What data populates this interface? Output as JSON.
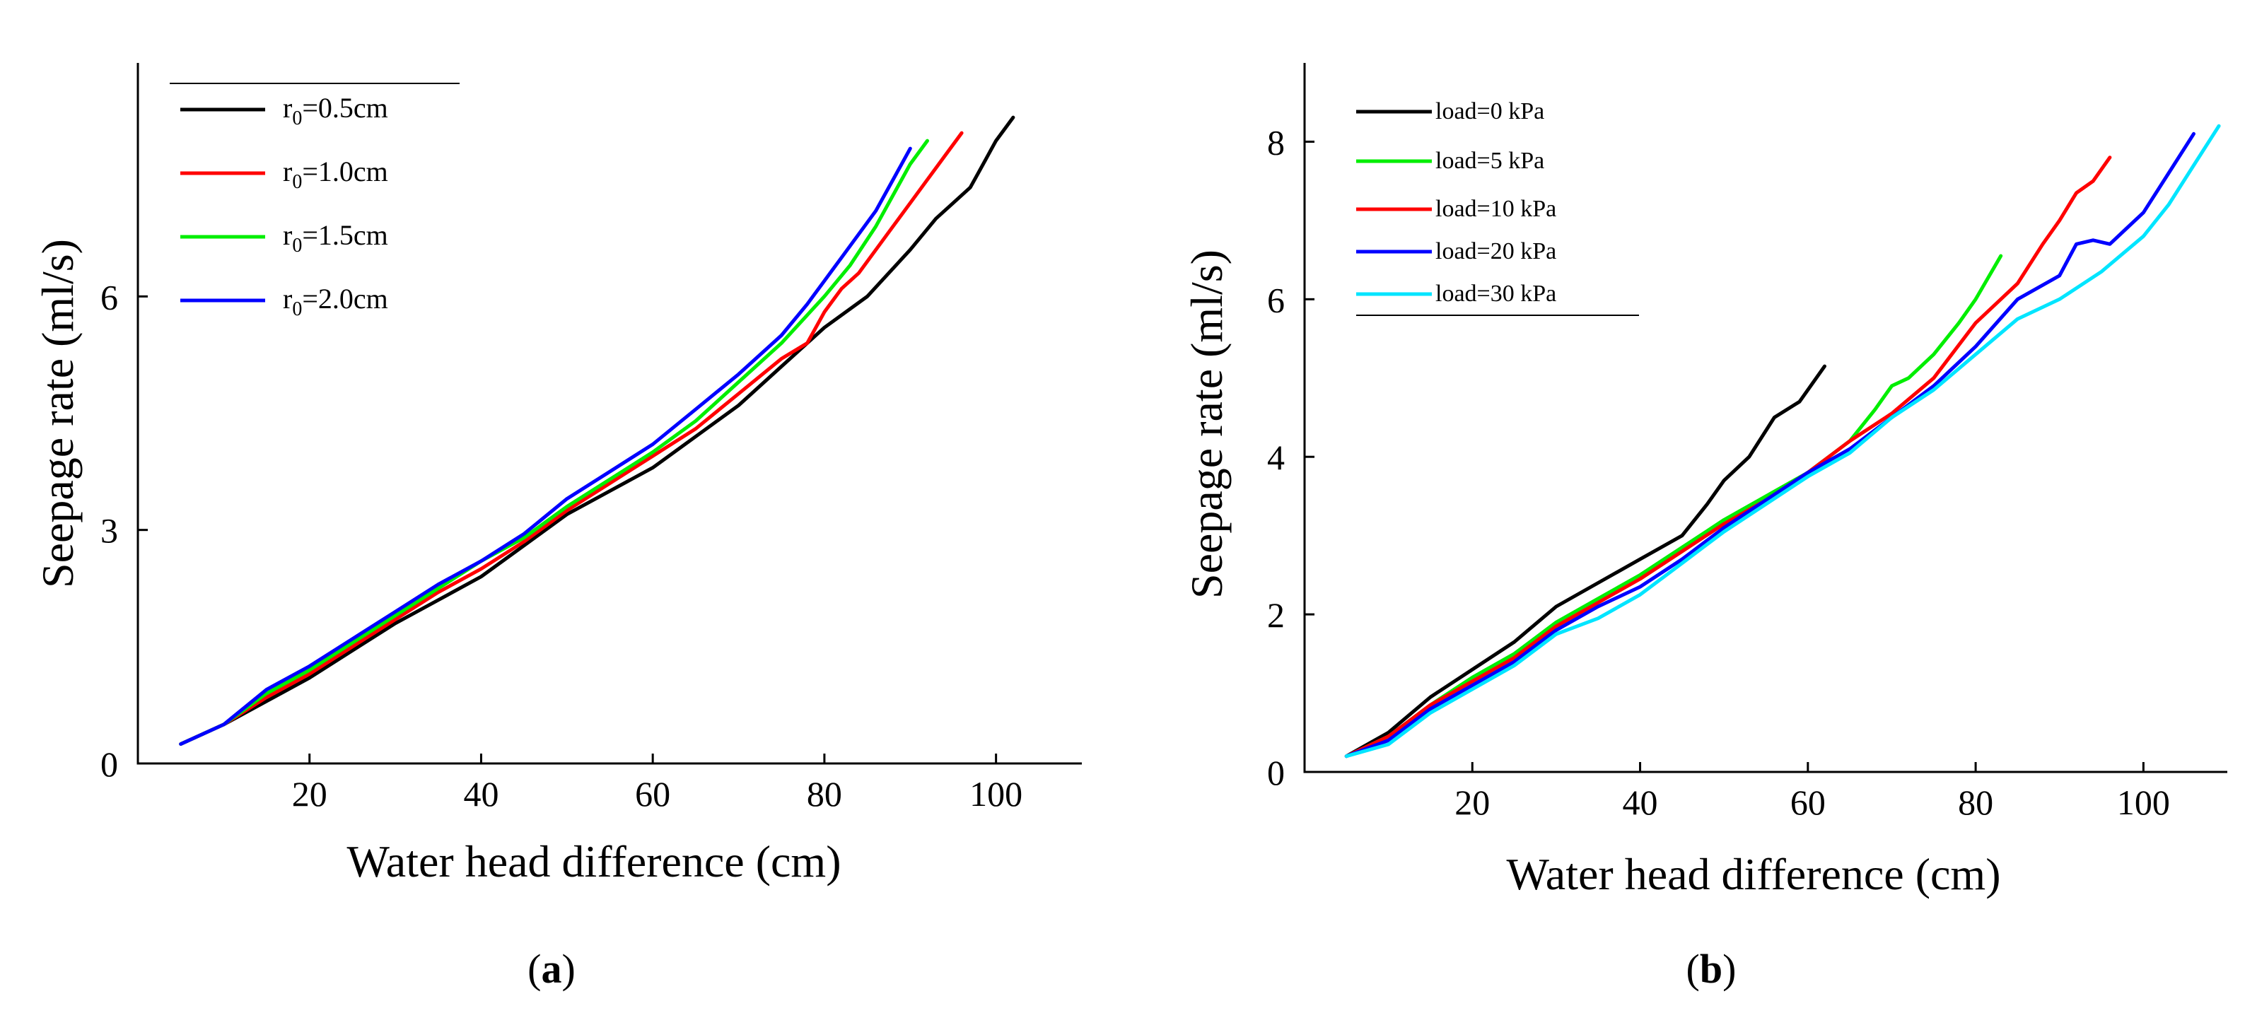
{
  "chart_data": [
    {
      "panel": "a",
      "type": "line",
      "xlabel": "Water head difference (cm)",
      "ylabel": "Seepage rate (ml/s)",
      "xlim": [
        0,
        110
      ],
      "ylim": [
        0,
        9
      ],
      "xticks": [
        20,
        40,
        60,
        80,
        100
      ],
      "yticks": [
        0,
        3,
        6
      ],
      "legend_position": "top-left",
      "series": [
        {
          "name": "r0=0.5cm",
          "label_main": "r",
          "label_sub": "0",
          "label_rest": "=0.5cm",
          "color": "#000000",
          "x": [
            5,
            10,
            15,
            20,
            25,
            30,
            35,
            40,
            45,
            50,
            55,
            60,
            65,
            70,
            75,
            80,
            85,
            90,
            93,
            95,
            97,
            98,
            100,
            102
          ],
          "y": [
            0.25,
            0.5,
            0.8,
            1.1,
            1.45,
            1.8,
            2.1,
            2.4,
            2.8,
            3.2,
            3.5,
            3.8,
            4.2,
            4.6,
            5.1,
            5.6,
            6.0,
            6.6,
            7.0,
            7.2,
            7.4,
            7.6,
            8.0,
            8.3
          ]
        },
        {
          "name": "r0=1.0cm",
          "label_main": "r",
          "label_sub": "0",
          "label_rest": "=1.0cm",
          "color": "#ff0000",
          "x": [
            5,
            10,
            15,
            20,
            25,
            30,
            35,
            40,
            45,
            50,
            55,
            60,
            65,
            70,
            75,
            78,
            80,
            82,
            84,
            86,
            88,
            90,
            92,
            94,
            96
          ],
          "y": [
            0.25,
            0.5,
            0.85,
            1.15,
            1.5,
            1.85,
            2.2,
            2.5,
            2.85,
            3.25,
            3.6,
            3.95,
            4.3,
            4.75,
            5.2,
            5.4,
            5.8,
            6.1,
            6.3,
            6.6,
            6.9,
            7.2,
            7.5,
            7.8,
            8.1
          ]
        },
        {
          "name": "r0=1.5cm",
          "label_main": "r",
          "label_sub": "0",
          "label_rest": "=1.5cm",
          "color": "#00ee00",
          "x": [
            5,
            10,
            15,
            20,
            25,
            30,
            35,
            40,
            45,
            50,
            55,
            60,
            65,
            70,
            75,
            80,
            83,
            86,
            88,
            90,
            92
          ],
          "y": [
            0.25,
            0.5,
            0.9,
            1.2,
            1.55,
            1.9,
            2.25,
            2.6,
            2.9,
            3.3,
            3.65,
            4.0,
            4.4,
            4.9,
            5.4,
            6.0,
            6.4,
            6.9,
            7.3,
            7.7,
            8.0
          ]
        },
        {
          "name": "r0=2.0cm",
          "label_main": "r",
          "label_sub": "0",
          "label_rest": "=2.0cm",
          "color": "#0000ff",
          "x": [
            5,
            10,
            15,
            20,
            25,
            30,
            35,
            40,
            45,
            50,
            55,
            60,
            65,
            70,
            75,
            78,
            80,
            82,
            84,
            86,
            88,
            90
          ],
          "y": [
            0.25,
            0.5,
            0.95,
            1.25,
            1.6,
            1.95,
            2.3,
            2.6,
            2.95,
            3.4,
            3.75,
            4.1,
            4.55,
            5.0,
            5.5,
            5.9,
            6.2,
            6.5,
            6.8,
            7.1,
            7.5,
            7.9
          ]
        }
      ]
    },
    {
      "panel": "b",
      "type": "line",
      "xlabel": "Water head difference (cm)",
      "ylabel": "Seepage rate (ml/s)",
      "xlim": [
        0,
        110
      ],
      "ylim": [
        0,
        9
      ],
      "xticks": [
        20,
        40,
        60,
        80,
        100
      ],
      "yticks": [
        0,
        2,
        4,
        6,
        8
      ],
      "legend_position": "top-left",
      "series": [
        {
          "name": "load=0 kPa",
          "color": "#000000",
          "x": [
            5,
            10,
            15,
            20,
            25,
            30,
            35,
            40,
            45,
            48,
            50,
            53,
            56,
            59,
            62
          ],
          "y": [
            0.2,
            0.5,
            0.95,
            1.3,
            1.65,
            2.1,
            2.4,
            2.7,
            3.0,
            3.4,
            3.7,
            4.0,
            4.5,
            4.7,
            5.15
          ]
        },
        {
          "name": "load=5 kPa",
          "color": "#00ee00",
          "x": [
            5,
            10,
            15,
            20,
            25,
            30,
            35,
            40,
            45,
            50,
            55,
            60,
            65,
            68,
            70,
            72,
            75,
            78,
            80,
            83
          ],
          "y": [
            0.2,
            0.45,
            0.85,
            1.2,
            1.5,
            1.9,
            2.2,
            2.5,
            2.85,
            3.2,
            3.5,
            3.8,
            4.2,
            4.6,
            4.9,
            5.0,
            5.3,
            5.7,
            6.0,
            6.55
          ]
        },
        {
          "name": "load=10 kPa",
          "color": "#ff0000",
          "x": [
            5,
            10,
            15,
            20,
            25,
            30,
            35,
            40,
            45,
            50,
            55,
            60,
            65,
            70,
            75,
            80,
            83,
            85,
            88,
            90,
            92,
            94,
            96
          ],
          "y": [
            0.2,
            0.45,
            0.85,
            1.15,
            1.45,
            1.85,
            2.15,
            2.45,
            2.8,
            3.15,
            3.45,
            3.8,
            4.2,
            4.55,
            5.0,
            5.7,
            6.0,
            6.2,
            6.7,
            7.0,
            7.35,
            7.5,
            7.8
          ]
        },
        {
          "name": "load=20 kPa",
          "color": "#0000ff",
          "x": [
            5,
            10,
            15,
            20,
            25,
            30,
            35,
            40,
            45,
            50,
            55,
            60,
            65,
            70,
            75,
            80,
            85,
            90,
            92,
            94,
            96,
            98,
            100,
            103,
            106
          ],
          "y": [
            0.2,
            0.4,
            0.8,
            1.1,
            1.4,
            1.8,
            2.1,
            2.35,
            2.7,
            3.1,
            3.45,
            3.8,
            4.1,
            4.5,
            4.9,
            5.4,
            6.0,
            6.3,
            6.7,
            6.75,
            6.7,
            6.9,
            7.1,
            7.6,
            8.1
          ]
        },
        {
          "name": "load=30 kPa",
          "color": "#00e5ff",
          "x": [
            5,
            10,
            15,
            20,
            25,
            30,
            35,
            40,
            45,
            50,
            55,
            60,
            65,
            70,
            75,
            80,
            85,
            90,
            95,
            100,
            103,
            106,
            109
          ],
          "y": [
            0.2,
            0.35,
            0.75,
            1.05,
            1.35,
            1.75,
            1.95,
            2.25,
            2.65,
            3.05,
            3.4,
            3.75,
            4.05,
            4.5,
            4.85,
            5.3,
            5.75,
            6.0,
            6.35,
            6.8,
            7.2,
            7.7,
            8.2
          ]
        }
      ]
    }
  ],
  "captions": {
    "a": "a",
    "b": "b"
  }
}
